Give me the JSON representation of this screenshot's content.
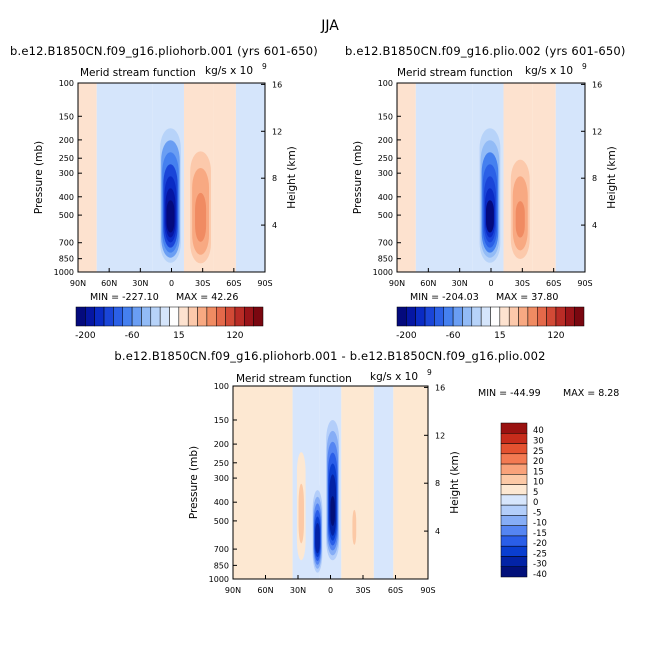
{
  "figure_title": "JJA",
  "chart_data": [
    {
      "type": "heatmap",
      "title": "b.e12.B1850CN.f09_g16.pliohorb.001 (yrs 601-650)",
      "subtitle": "Merid stream function",
      "units_text": "kg/s x 10",
      "units_exponent": "9",
      "ylabel": "Pressure (mb)",
      "y2label": "Height (km)",
      "x_ticks": [
        "90N",
        "60N",
        "30N",
        "0",
        "30S",
        "60S",
        "90S"
      ],
      "y_ticks": [
        "100",
        "150",
        "200",
        "250",
        "300",
        "400",
        "500",
        "700",
        "850",
        "1000"
      ],
      "y_tick_values": [
        100,
        150,
        200,
        250,
        300,
        400,
        500,
        700,
        850,
        1000
      ],
      "y2_ticks": [
        "16",
        "12",
        "8",
        "4"
      ],
      "y2_tick_values": [
        16,
        12,
        8,
        4
      ],
      "xlim": [
        90,
        -90
      ],
      "ylim": [
        1000,
        100
      ],
      "stats": {
        "min_label": "MIN = -227.10",
        "max_label": "MAX = 42.26",
        "min": -227.1,
        "max": 42.26
      },
      "levels": [
        -200,
        -180,
        -160,
        -140,
        -120,
        -100,
        -80,
        -60,
        -40,
        -20,
        -5,
        5,
        15,
        30,
        45,
        60,
        80,
        100,
        120,
        140,
        160
      ],
      "colorbar_labels": [
        "-200",
        "-60",
        "15",
        "120"
      ],
      "features": [
        {
          "lat": 1,
          "p_top": 150,
          "p_bottom": 950,
          "half_width_deg": 11,
          "value": -227.1
        },
        {
          "lat": -28,
          "p_top": 230,
          "p_bottom": 900,
          "half_width_deg": 10,
          "value": 42.26
        }
      ]
    },
    {
      "type": "heatmap",
      "title": "b.e12.B1850CN.f09_g16.plio.002 (yrs 601-650)",
      "subtitle": "Merid stream function",
      "units_text": "kg/s x 10",
      "units_exponent": "9",
      "ylabel": "Pressure (mb)",
      "y2label": "Height (km)",
      "x_ticks": [
        "90N",
        "60N",
        "30N",
        "0",
        "30S",
        "60S",
        "90S"
      ],
      "y_ticks": [
        "100",
        "150",
        "200",
        "250",
        "300",
        "400",
        "500",
        "700",
        "850",
        "1000"
      ],
      "y_tick_values": [
        100,
        150,
        200,
        250,
        300,
        400,
        500,
        700,
        850,
        1000
      ],
      "y2_ticks": [
        "16",
        "12",
        "8",
        "4"
      ],
      "y2_tick_values": [
        16,
        12,
        8,
        4
      ],
      "xlim": [
        90,
        -90
      ],
      "ylim": [
        1000,
        100
      ],
      "stats": {
        "min_label": "MIN = -204.03",
        "max_label": "MAX = 37.80",
        "min": -204.03,
        "max": 37.8
      },
      "levels": [
        -200,
        -180,
        -160,
        -140,
        -120,
        -100,
        -80,
        -60,
        -40,
        -20,
        -5,
        5,
        15,
        30,
        45,
        60,
        80,
        100,
        120,
        140,
        160
      ],
      "colorbar_labels": [
        "-200",
        "-60",
        "15",
        "120"
      ],
      "features": [
        {
          "lat": 1,
          "p_top": 150,
          "p_bottom": 950,
          "half_width_deg": 11,
          "value": -204.03
        },
        {
          "lat": -28,
          "p_top": 230,
          "p_bottom": 900,
          "half_width_deg": 10,
          "value": 37.8
        }
      ]
    },
    {
      "type": "heatmap",
      "title": "b.e12.B1850CN.f09_g16.pliohorb.001 - b.e12.B1850CN.f09_g16.plio.002",
      "subtitle": "Merid stream function",
      "units_text": "kg/s x 10",
      "units_exponent": "9",
      "ylabel": "Pressure (mb)",
      "y2label": "Height (km)",
      "x_ticks": [
        "90N",
        "60N",
        "30N",
        "0",
        "30S",
        "60S",
        "90S"
      ],
      "y_ticks": [
        "100",
        "150",
        "200",
        "250",
        "300",
        "400",
        "500",
        "700",
        "850",
        "1000"
      ],
      "y_tick_values": [
        100,
        150,
        200,
        250,
        300,
        400,
        500,
        700,
        850,
        1000
      ],
      "y2_ticks": [
        "16",
        "12",
        "8",
        "4"
      ],
      "y2_tick_values": [
        16,
        12,
        8,
        4
      ],
      "xlim": [
        90,
        -90
      ],
      "ylim": [
        1000,
        100
      ],
      "stats": {
        "min_label": "MIN = -44.99",
        "max_label": "MAX = 8.28",
        "min": -44.99,
        "max": 8.28
      },
      "levels": [
        -40,
        -30,
        -25,
        -20,
        -15,
        -10,
        -5,
        0,
        5,
        10,
        15,
        20,
        25,
        30,
        40
      ],
      "colorbar_labels": [
        "40",
        "30",
        "25",
        "20",
        "15",
        "10",
        "5",
        "0",
        "-5",
        "-10",
        "-15",
        "-20",
        "-25",
        "-30",
        "-40"
      ],
      "features": [
        {
          "lat": 12,
          "p_top": 320,
          "p_bottom": 970,
          "half_width_deg": 5,
          "value": -38
        },
        {
          "lat": -2,
          "p_top": 150,
          "p_bottom": 800,
          "half_width_deg": 6,
          "value": -44.99
        },
        {
          "lat": 27,
          "p_top": 220,
          "p_bottom": 800,
          "half_width_deg": 4,
          "value": 8.28
        },
        {
          "lat": -22,
          "p_top": 250,
          "p_bottom": 900,
          "half_width_deg": 4,
          "value": 6
        }
      ]
    }
  ]
}
